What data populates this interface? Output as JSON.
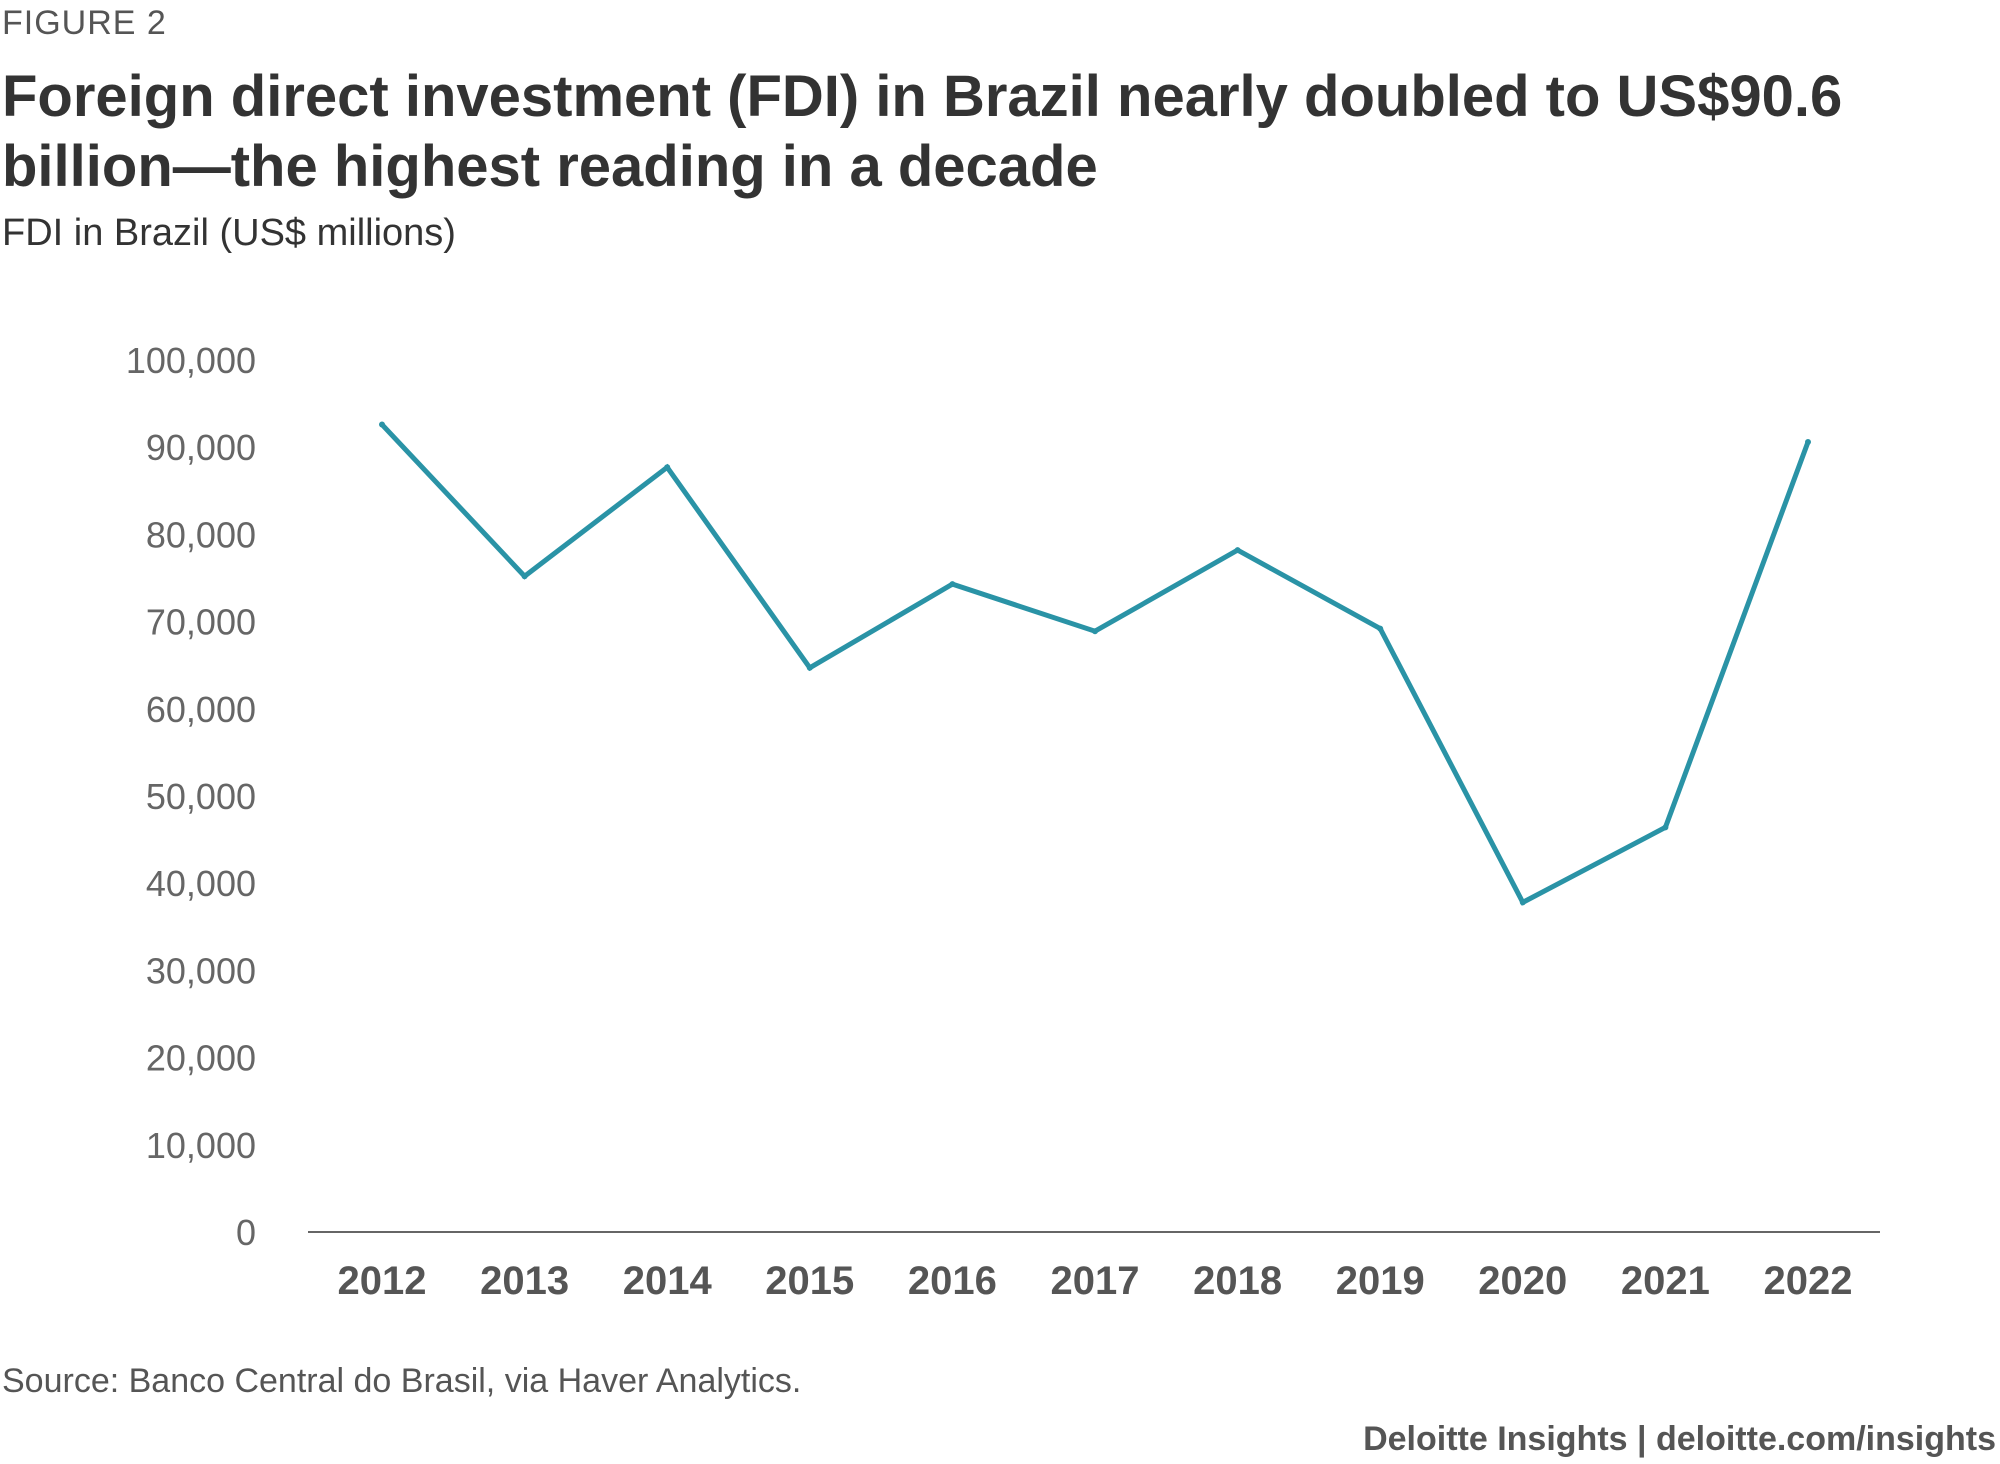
{
  "figure_label": "FIGURE 2",
  "chart_data": {
    "type": "line",
    "title": "Foreign direct investment (FDI) in Brazil nearly doubled to US$90.6 billion—the highest reading in a decade",
    "subtitle": "FDI in Brazil (US$ millions)",
    "xlabel": "",
    "ylabel": "",
    "categories": [
      "2012",
      "2013",
      "2014",
      "2015",
      "2016",
      "2017",
      "2018",
      "2019",
      "2020",
      "2021",
      "2022"
    ],
    "series": [
      {
        "name": "FDI in Brazil",
        "color": "#2a93a6",
        "values": [
          92600,
          75200,
          87700,
          64700,
          74300,
          68900,
          78200,
          69200,
          37800,
          46400,
          90600
        ]
      }
    ],
    "ylim": [
      0,
      100000
    ],
    "yticks": [
      0,
      10000,
      20000,
      30000,
      40000,
      50000,
      60000,
      70000,
      80000,
      90000,
      100000
    ],
    "ytick_labels": [
      "0",
      "10,000",
      "20,000",
      "30,000",
      "40,000",
      "50,000",
      "60,000",
      "70,000",
      "80,000",
      "90,000",
      "100,000"
    ],
    "grid": false,
    "legend": "none"
  },
  "source": "Source: Banco Central do Brasil, via Haver Analytics.",
  "credit": "Deloitte Insights | deloitte.com/insights"
}
